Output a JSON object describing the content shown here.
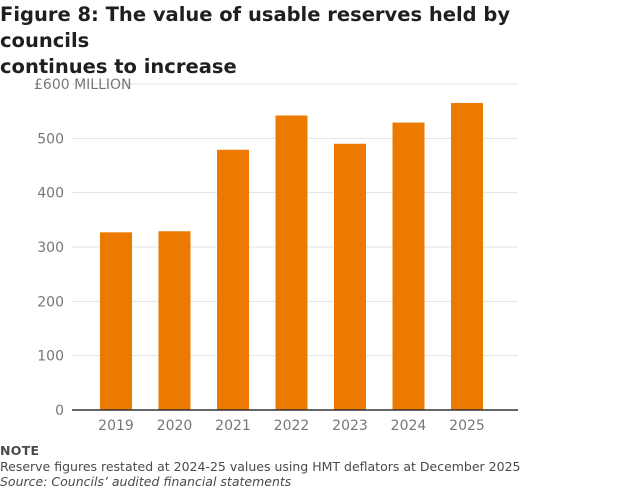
{
  "figure": {
    "title_line1": "Figure 8: The value of usable reserves held by councils",
    "title_line2": "continues to increase",
    "note_heading": "NOTE",
    "note_text": "Reserve figures restated at 2024-25 values using HMT deflators at December 2025",
    "source_text": "Source: Councils’ audited financial statements"
  },
  "colors": {
    "bar": "#ec7a00",
    "grid": "#e3e3e3",
    "axis": "#333333"
  },
  "chart_data": {
    "type": "bar",
    "categories": [
      "2019",
      "2020",
      "2021",
      "2022",
      "2023",
      "2024",
      "2025"
    ],
    "values": [
      327,
      329,
      479,
      542,
      490,
      529,
      565
    ],
    "ylim": [
      0,
      600
    ],
    "yticks": [
      0,
      100,
      200,
      300,
      400,
      500,
      600
    ],
    "ytick_labels": [
      "0",
      "100",
      "200",
      "300",
      "400",
      "500",
      "£600 MILLION"
    ],
    "grid": true,
    "legend": "none"
  }
}
